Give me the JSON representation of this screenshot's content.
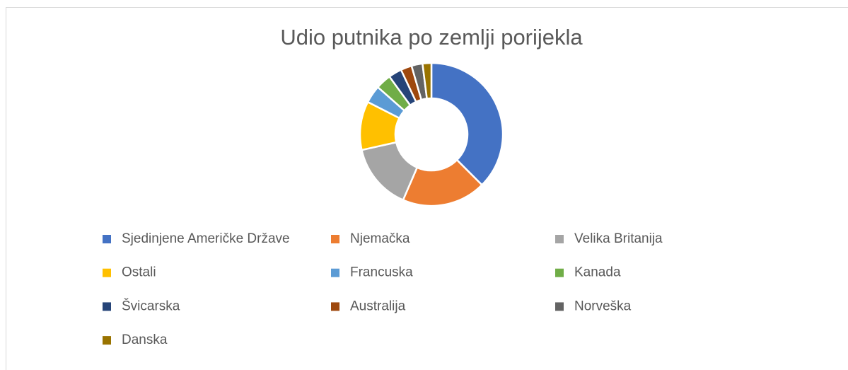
{
  "chart_data": {
    "type": "donut",
    "title": "Udio putnika po zemlji porijekla",
    "categories": [
      "Sjedinjene Američke Države",
      "Njemačka",
      "Velika Britanija",
      "Ostali",
      "Francuska",
      "Kanada",
      "Švicarska",
      "Australija",
      "Norveška",
      "Danska"
    ],
    "values": [
      37.5,
      19,
      15,
      11,
      4,
      3.5,
      3,
      2.5,
      2.5,
      2
    ],
    "colors": [
      "#4472c4",
      "#ed7d31",
      "#a5a5a5",
      "#ffc000",
      "#5b9bd5",
      "#70ad47",
      "#264478",
      "#9e480e",
      "#636363",
      "#997300"
    ],
    "legend": "bottom"
  }
}
